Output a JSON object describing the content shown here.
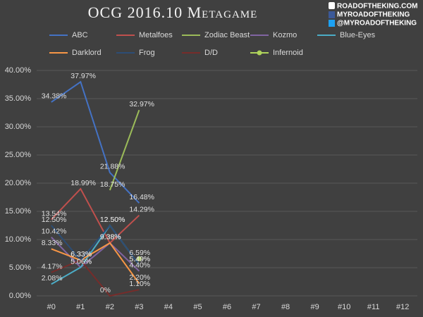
{
  "chart_data": {
    "type": "line",
    "title": "OCG 2016.10 Metagame",
    "watermark": [
      "ROADOFTHEKING.COM",
      "MYROADOFTHEKING",
      "@MYROADOFTHEKING"
    ],
    "categories": [
      "#0",
      "#1",
      "#2",
      "#3",
      "#4",
      "#5",
      "#6",
      "#7",
      "#8",
      "#9",
      "#10",
      "#11",
      "#12"
    ],
    "ylim": [
      0,
      40
    ],
    "yticks": [
      {
        "value": 0,
        "label": "0.00%"
      },
      {
        "value": 5,
        "label": "5.00%"
      },
      {
        "value": 10,
        "label": "10.00%"
      },
      {
        "value": 15,
        "label": "15.00%"
      },
      {
        "value": 20,
        "label": "20.00%"
      },
      {
        "value": 25,
        "label": "25.00%"
      },
      {
        "value": 30,
        "label": "30.00%"
      },
      {
        "value": 35,
        "label": "35.00%"
      },
      {
        "value": 40,
        "label": "40.00%"
      }
    ],
    "grid": true,
    "series": [
      {
        "name": "ABC",
        "color": "#4472c4",
        "values": [
          34.38,
          37.97,
          21.88,
          16.48,
          null,
          null,
          null,
          null,
          null,
          null,
          null,
          null,
          null
        ],
        "value_labels": [
          "34.38%",
          "37.97%",
          "21.88%",
          "16.48%",
          null,
          null,
          null,
          null,
          null,
          null,
          null,
          null,
          null
        ]
      },
      {
        "name": "Metalfoes",
        "color": "#c0504d",
        "values": [
          13.54,
          18.99,
          9.38,
          14.29,
          null,
          null,
          null,
          null,
          null,
          null,
          null,
          null,
          null
        ],
        "value_labels": [
          "13.54%",
          "18.99%",
          "9.38%",
          "14.29%",
          null,
          null,
          null,
          null,
          null,
          null,
          null,
          null,
          null
        ]
      },
      {
        "name": "Zodiac Beast",
        "color": "#9bbb59",
        "values": [
          null,
          null,
          18.75,
          32.97,
          null,
          null,
          null,
          null,
          null,
          null,
          null,
          null,
          null
        ],
        "value_labels": [
          null,
          null,
          "18.75%",
          "32.97%",
          null,
          null,
          null,
          null,
          null,
          null,
          null,
          null,
          null
        ]
      },
      {
        "name": "Kozmo",
        "color": "#8064a2",
        "values": [
          10.42,
          5.06,
          9.38,
          4.4,
          null,
          null,
          null,
          null,
          null,
          null,
          null,
          null,
          null
        ],
        "value_labels": [
          "10.42%",
          "5.06%",
          "9.38%",
          "4.40%",
          null,
          null,
          null,
          null,
          null,
          null,
          null,
          null,
          null
        ]
      },
      {
        "name": "Blue-Eyes",
        "color": "#4bacc6",
        "values": [
          2.08,
          5.06,
          12.5,
          5.49,
          null,
          null,
          null,
          null,
          null,
          null,
          null,
          null,
          null
        ],
        "value_labels": [
          "2.08%",
          "5.06%",
          "12.50%",
          "5.49%",
          null,
          null,
          null,
          null,
          null,
          null,
          null,
          null,
          null
        ]
      },
      {
        "name": "Darklord",
        "color": "#f79646",
        "values": [
          8.33,
          6.33,
          9.38,
          2.2,
          null,
          null,
          null,
          null,
          null,
          null,
          null,
          null,
          null
        ],
        "value_labels": [
          "8.33%",
          "6.33%",
          "9.38%",
          "2.20%",
          null,
          null,
          null,
          null,
          null,
          null,
          null,
          null,
          null
        ]
      },
      {
        "name": "Frog",
        "color": "#2c4d75",
        "values": [
          12.5,
          6.33,
          12.5,
          5.49,
          null,
          null,
          null,
          null,
          null,
          null,
          null,
          null,
          null
        ],
        "value_labels": [
          "12.50%",
          "6.33%",
          "12.50%",
          "5.49%",
          null,
          null,
          null,
          null,
          null,
          null,
          null,
          null,
          null
        ]
      },
      {
        "name": "D/D",
        "color": "#772c2a",
        "values": [
          4.17,
          6.33,
          0,
          1.1,
          null,
          null,
          null,
          null,
          null,
          null,
          null,
          null,
          null
        ],
        "value_labels": [
          "4.17%",
          "6.33%",
          "0%",
          "1.10%",
          null,
          null,
          null,
          null,
          null,
          null,
          null,
          null,
          null
        ]
      },
      {
        "name": "Infernoid",
        "color": "#afd35b",
        "marker": true,
        "values": [
          null,
          null,
          null,
          6.59,
          null,
          null,
          null,
          null,
          null,
          null,
          null,
          null,
          null
        ],
        "value_labels": [
          null,
          null,
          null,
          "6.59%",
          null,
          null,
          null,
          null,
          null,
          null,
          null,
          null,
          null
        ]
      }
    ]
  }
}
